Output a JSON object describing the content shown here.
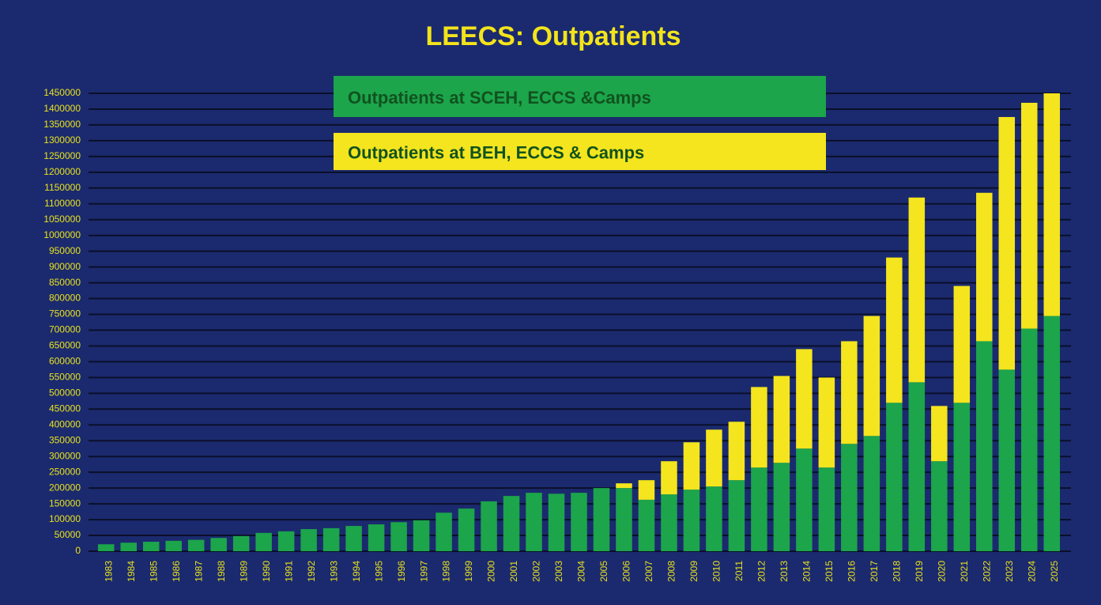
{
  "chart_data": {
    "type": "stacked_bar",
    "title": "LEECS: Outpatients",
    "categories": [
      "1983",
      "1984",
      "1985",
      "1986",
      "1987",
      "1988",
      "1989",
      "1990",
      "1991",
      "1992",
      "1993",
      "1994",
      "1995",
      "1996",
      "1997",
      "1998",
      "1999",
      "2000",
      "2001",
      "2002",
      "2003",
      "2004",
      "2005",
      "2006",
      "2007",
      "2008",
      "2009",
      "2010",
      "2011",
      "2012",
      "2013",
      "2014",
      "2015",
      "2016",
      "2017",
      "2018",
      "2019",
      "2020",
      "2021",
      "2022",
      "2023",
      "2024",
      "2025"
    ],
    "series": [
      {
        "name": "Outpatients at SCEH, ECCS &Camps",
        "color": "#1ca54b",
        "values": [
          22000,
          27000,
          30000,
          33000,
          36000,
          42000,
          48000,
          58000,
          63000,
          70000,
          73000,
          80000,
          85000,
          92000,
          98000,
          122000,
          135000,
          158000,
          175000,
          185000,
          182000,
          185000,
          200000,
          200000,
          163000,
          180000,
          195000,
          205000,
          225000,
          265000,
          280000,
          325000,
          265000,
          340000,
          365000,
          470000,
          535000,
          285000,
          470000,
          665000,
          575000,
          705000,
          745000
        ]
      },
      {
        "name": "Outpatients at BEH, ECCS & Camps",
        "color": "#f4e51e",
        "values": [
          0,
          0,
          0,
          0,
          0,
          0,
          0,
          0,
          0,
          0,
          0,
          0,
          0,
          0,
          0,
          0,
          0,
          0,
          0,
          0,
          0,
          0,
          0,
          15000,
          62000,
          105000,
          150000,
          180000,
          185000,
          255000,
          275000,
          315000,
          285000,
          325000,
          380000,
          460000,
          585000,
          175000,
          370000,
          470000,
          800000,
          715000,
          705000
        ]
      }
    ],
    "ylim": [
      0,
      1450000
    ],
    "yticks": [
      0,
      50000,
      100000,
      150000,
      200000,
      250000,
      300000,
      350000,
      400000,
      450000,
      500000,
      550000,
      600000,
      650000,
      700000,
      750000,
      800000,
      850000,
      900000,
      950000,
      1000000,
      1050000,
      1100000,
      1150000,
      1200000,
      1250000,
      1300000,
      1350000,
      1400000,
      1450000
    ],
    "grid": true
  }
}
